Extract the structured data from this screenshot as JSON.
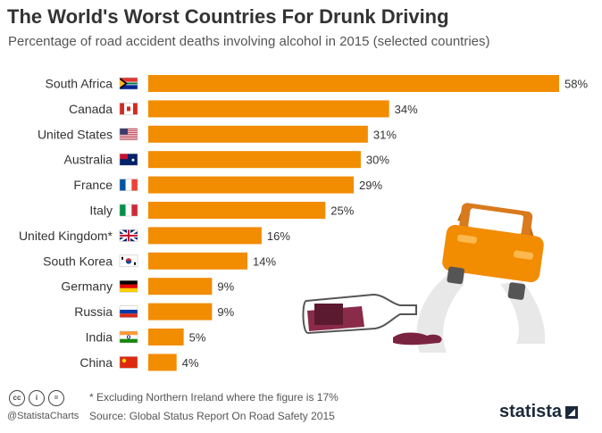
{
  "header": {
    "title": "The World's Worst Countries For Drunk Driving",
    "subtitle": "Percentage of road accident deaths involving alcohol in 2015 (selected countries)"
  },
  "colors": {
    "bar": "#F28C00",
    "text": "#333333"
  },
  "chart_data": {
    "type": "bar",
    "orientation": "horizontal",
    "categories": [
      "South Africa",
      "Canada",
      "United States",
      "Australia",
      "France",
      "Italy",
      "United Kingdom*",
      "South Korea",
      "Germany",
      "Russia",
      "India",
      "China"
    ],
    "values": [
      58,
      34,
      31,
      30,
      29,
      25,
      16,
      14,
      9,
      9,
      5,
      4
    ],
    "value_labels": [
      "58%",
      "34%",
      "31%",
      "30%",
      "29%",
      "25%",
      "16%",
      "14%",
      "9%",
      "9%",
      "5%",
      "4%"
    ],
    "flags": [
      "south-africa-flag-icon",
      "canada-flag-icon",
      "usa-flag-icon",
      "australia-flag-icon",
      "france-flag-icon",
      "italy-flag-icon",
      "uk-flag-icon",
      "south-korea-flag-icon",
      "germany-flag-icon",
      "russia-flag-icon",
      "india-flag-icon",
      "china-flag-icon"
    ],
    "xlim": [
      0,
      58
    ],
    "title": "The World's Worst Countries For Drunk Driving",
    "xlabel": "",
    "ylabel": "",
    "grid": false
  },
  "footer": {
    "footnote": "* Excluding Northern Ireland where the figure is 17%",
    "source": "Source: Global Status Report On Road Safety 2015",
    "handle": "@StatistaCharts",
    "brand": "statista",
    "license_icons": [
      "cc-icon",
      "by-icon",
      "nd-icon"
    ]
  }
}
